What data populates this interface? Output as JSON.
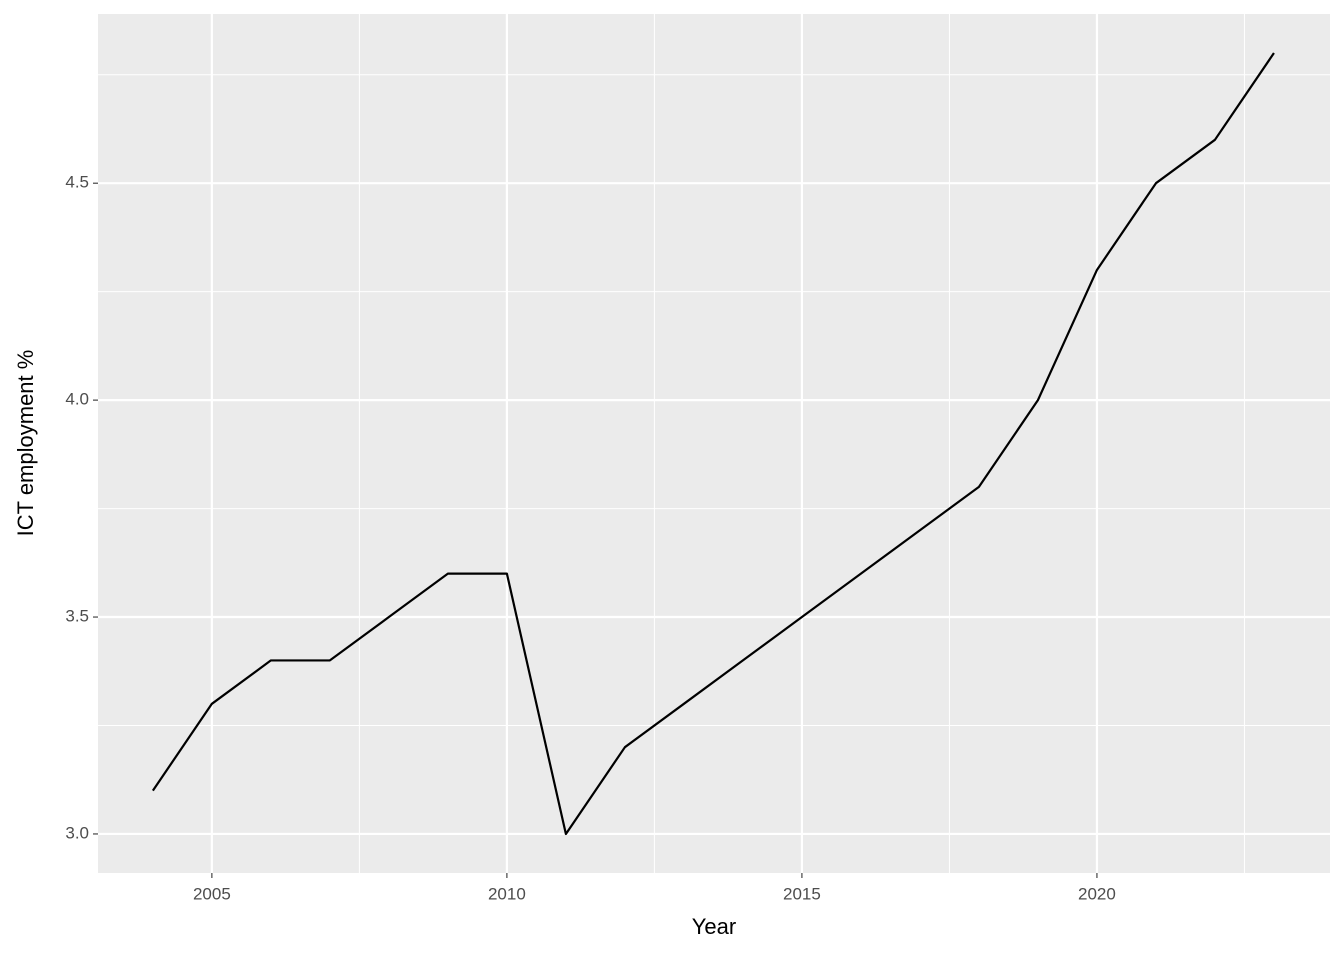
{
  "chart_data": {
    "type": "line",
    "x_label": "Year",
    "y_label": "ICT employment %",
    "x": [
      2004,
      2005,
      2006,
      2007,
      2008,
      2009,
      2010,
      2011,
      2012,
      2013,
      2014,
      2015,
      2016,
      2017,
      2018,
      2019,
      2020,
      2021,
      2022,
      2023
    ],
    "series": [
      {
        "color": "#000000",
        "values": [
          3.1,
          3.3,
          3.4,
          3.4,
          3.5,
          3.6,
          3.6,
          3.0,
          3.2,
          3.3,
          3.4,
          3.5,
          3.6,
          3.7,
          3.8,
          4.0,
          4.3,
          4.5,
          4.6,
          4.8
        ]
      }
    ],
    "xlim": [
      2003.07,
      2023.95
    ],
    "ylim": [
      2.91,
      4.89
    ],
    "xticks": [
      2005,
      2010,
      2015,
      2020
    ],
    "yticks": [
      {
        "value": 3,
        "label": "3.0"
      },
      3.5,
      {
        "value": 4,
        "label": "4.0"
      },
      4.5
    ],
    "grid": true,
    "minor_grid": true
  }
}
